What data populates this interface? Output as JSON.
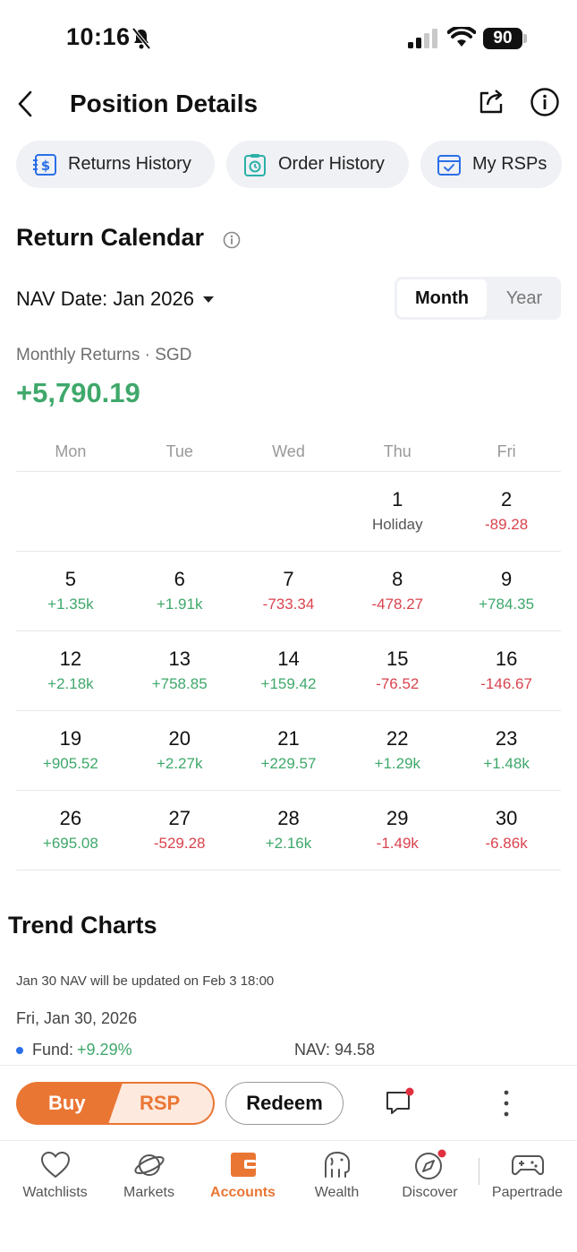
{
  "status_bar": {
    "time": "10:16",
    "battery": "90"
  },
  "header": {
    "title": "Position Details"
  },
  "chips": {
    "returns_history": "Returns History",
    "order_history": "Order History",
    "my_rsps": "My RSPs"
  },
  "calendar": {
    "title": "Return Calendar",
    "nav_date": "NAV Date: Jan 2026",
    "toggle": {
      "month": "Month",
      "year": "Year",
      "selected": "Month"
    },
    "returns_label": "Monthly Returns · SGD",
    "returns_value": "+5,790.19",
    "weekdays": [
      "Mon",
      "Tue",
      "Wed",
      "Thu",
      "Fri"
    ],
    "weeks": [
      [
        {
          "day": "",
          "value": "",
          "tone": "neu"
        },
        {
          "day": "",
          "value": "",
          "tone": "neu"
        },
        {
          "day": "",
          "value": "",
          "tone": "neu"
        },
        {
          "day": "1",
          "value": "Holiday",
          "tone": "neu"
        },
        {
          "day": "2",
          "value": "-89.28",
          "tone": "neg"
        }
      ],
      [
        {
          "day": "5",
          "value": "+1.35k",
          "tone": "pos"
        },
        {
          "day": "6",
          "value": "+1.91k",
          "tone": "pos"
        },
        {
          "day": "7",
          "value": "-733.34",
          "tone": "neg"
        },
        {
          "day": "8",
          "value": "-478.27",
          "tone": "neg"
        },
        {
          "day": "9",
          "value": "+784.35",
          "tone": "pos"
        }
      ],
      [
        {
          "day": "12",
          "value": "+2.18k",
          "tone": "pos"
        },
        {
          "day": "13",
          "value": "+758.85",
          "tone": "pos"
        },
        {
          "day": "14",
          "value": "+159.42",
          "tone": "pos"
        },
        {
          "day": "15",
          "value": "-76.52",
          "tone": "neg"
        },
        {
          "day": "16",
          "value": "-146.67",
          "tone": "neg"
        }
      ],
      [
        {
          "day": "19",
          "value": "+905.52",
          "tone": "pos"
        },
        {
          "day": "20",
          "value": "+2.27k",
          "tone": "pos"
        },
        {
          "day": "21",
          "value": "+229.57",
          "tone": "pos"
        },
        {
          "day": "22",
          "value": "+1.29k",
          "tone": "pos"
        },
        {
          "day": "23",
          "value": "+1.48k",
          "tone": "pos"
        }
      ],
      [
        {
          "day": "26",
          "value": "+695.08",
          "tone": "pos"
        },
        {
          "day": "27",
          "value": "-529.28",
          "tone": "neg"
        },
        {
          "day": "28",
          "value": "+2.16k",
          "tone": "pos"
        },
        {
          "day": "29",
          "value": "-1.49k",
          "tone": "neg"
        },
        {
          "day": "30",
          "value": "-6.86k",
          "tone": "neg"
        }
      ]
    ]
  },
  "trend": {
    "title": "Trend Charts",
    "note": "Jan 30 NAV will be updated on Feb 3 18:00",
    "date": "Fri, Jan 30, 2026",
    "fund_label": "Fund:",
    "fund_value": "+9.29%",
    "nav_text": "NAV: 94.58"
  },
  "actions": {
    "buy": "Buy",
    "rsp": "RSP",
    "redeem": "Redeem"
  },
  "tabs": [
    {
      "label": "Watchlists",
      "icon": "heart-icon"
    },
    {
      "label": "Markets",
      "icon": "planet-icon"
    },
    {
      "label": "Accounts",
      "icon": "wallet-icon",
      "active": true
    },
    {
      "label": "Wealth",
      "icon": "elephant-icon"
    },
    {
      "label": "Discover",
      "icon": "compass-icon"
    },
    {
      "label": "Papertrade",
      "icon": "gamepad-icon"
    }
  ],
  "colors": {
    "positive": "#3fa86b",
    "negative": "#d9434e",
    "accent": "#ea7634",
    "chip_bg": "#eff1f5"
  }
}
